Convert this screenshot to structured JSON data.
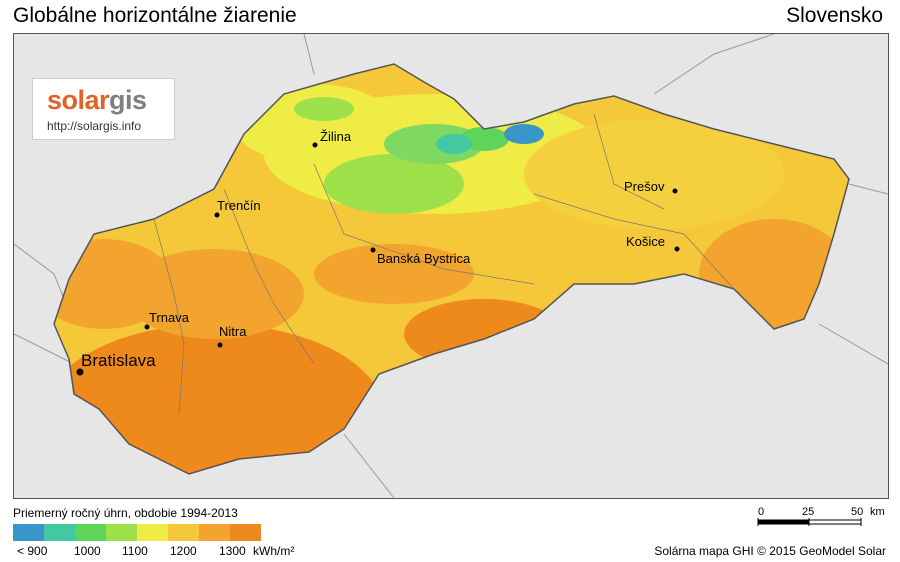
{
  "header": {
    "title": "Globálne horizontálne žiarenie",
    "country": "Slovensko"
  },
  "logo": {
    "word_a": "solar",
    "word_b": "gis",
    "url": "http://solargis.info"
  },
  "cities": [
    {
      "name": "Žilina"
    },
    {
      "name": "Trenčín"
    },
    {
      "name": "Prešov"
    },
    {
      "name": "Košice"
    },
    {
      "name": "Banská Bystrica"
    },
    {
      "name": "Trnava"
    },
    {
      "name": "Nitra"
    },
    {
      "name": "Bratislava"
    }
  ],
  "legend": {
    "title": "Priemerný ročný úhrn, obdobie 1994-2013",
    "colors": [
      "#3a96c8",
      "#43c8a4",
      "#5ed45a",
      "#9ee04a",
      "#f0ec46",
      "#f5c83a",
      "#f2a42e",
      "#ee8a1c"
    ],
    "labels": [
      "< 900",
      "1000",
      "1100",
      "1200",
      "1300"
    ],
    "unit": "kWh/m²"
  },
  "scale": {
    "labels": [
      "0",
      "25",
      "50"
    ],
    "unit": "km"
  },
  "credit": "Solárna mapa GHI © 2015 GeoModel Solar"
}
